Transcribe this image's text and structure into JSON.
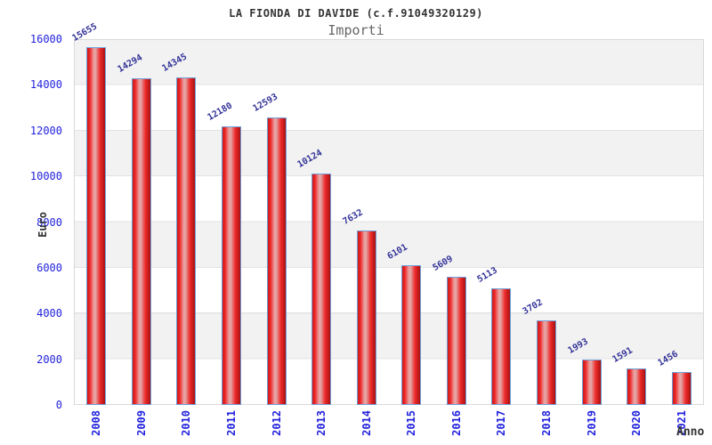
{
  "chart_data": {
    "type": "bar",
    "title": "LA FIONDA DI DAVIDE (c.f.91049320129)",
    "subtitle": "Importi",
    "xlabel": "Anno",
    "ylabel": "Euro",
    "categories": [
      "2008",
      "2009",
      "2010",
      "2011",
      "2012",
      "2013",
      "2014",
      "2015",
      "2016",
      "2017",
      "2018",
      "2019",
      "2020",
      "2021"
    ],
    "values": [
      15655,
      14294,
      14345,
      12180,
      12593,
      10124,
      7632,
      6101,
      5609,
      5113,
      3702,
      1993,
      1591,
      1456
    ],
    "ylim": [
      0,
      16000
    ],
    "yticks": [
      0,
      2000,
      4000,
      6000,
      8000,
      10000,
      12000,
      14000,
      16000
    ],
    "grid": "alternating horizontal bands every 2000",
    "legend": "none",
    "bar_value_labels_rotation_deg": -30,
    "x_tick_rotation_deg": -90
  },
  "colors": {
    "bar_fill": "#ee2222",
    "bar_center_highlight": "#e4a8a8",
    "bar_border": "#6f9fd8",
    "axis_tick_label": "#2222dd",
    "value_label": "#333399",
    "band_gray": "#f2f2f2",
    "band_white": "#ffffff",
    "plot_border": "#d9d9d9",
    "title_color": "#333333",
    "subtitle_color": "#666666",
    "axis_title_color": "#333333"
  }
}
